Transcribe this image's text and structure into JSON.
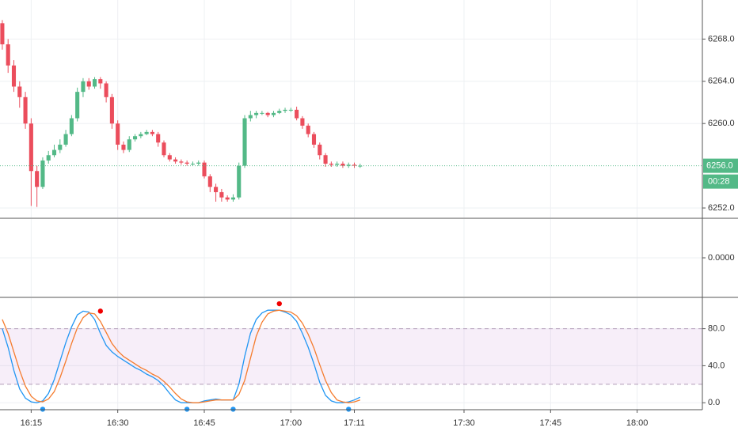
{
  "chart_data": [
    {
      "type": "candlestick",
      "x": [
        970,
        971,
        972,
        973,
        974,
        975,
        976,
        977,
        978,
        979,
        980,
        981,
        982,
        983,
        984,
        985,
        986,
        987,
        988,
        989,
        990,
        991,
        992,
        993,
        994,
        995,
        996,
        997,
        998,
        999,
        1000,
        1001,
        1002,
        1003,
        1004,
        1005,
        1006,
        1007,
        1008,
        1009,
        1010,
        1011,
        1012,
        1013,
        1014,
        1015,
        1016,
        1017,
        1018,
        1019,
        1020,
        1021,
        1022,
        1023,
        1024,
        1025,
        1026,
        1027,
        1028,
        1029,
        1030,
        1031,
        1032
      ],
      "open": [
        6269.5,
        6267.5,
        6265.5,
        6263.5,
        6262.5,
        6260,
        6255.5,
        6254,
        6256.5,
        6257,
        6257.5,
        6258,
        6259,
        6260.5,
        6263,
        6264,
        6263.5,
        6264.2,
        6263.8,
        6262.5,
        6260,
        6258,
        6257.5,
        6258.5,
        6258.8,
        6259,
        6259.2,
        6259,
        6258.2,
        6257,
        6256.6,
        6256.4,
        6256.3,
        6256.2,
        6256.2,
        6256.3,
        6255,
        6254,
        6253.5,
        6253,
        6252.8,
        6253,
        6256,
        6260.5,
        6260.8,
        6261,
        6261,
        6260.8,
        6261,
        6261.2,
        6261.3,
        6261.3,
        6260.5,
        6259.8,
        6259,
        6258,
        6257,
        6256.2,
        6256.1,
        6256.2,
        6256,
        6256.1,
        6256
      ],
      "high": [
        6269.8,
        6268,
        6266,
        6264,
        6263,
        6260.5,
        6256,
        6256.8,
        6257.4,
        6258,
        6258.5,
        6259.4,
        6260.8,
        6263.4,
        6264.3,
        6264.3,
        6264.4,
        6264.4,
        6264,
        6262.8,
        6260.3,
        6258.3,
        6258.8,
        6259,
        6259.2,
        6259.4,
        6259.4,
        6259.2,
        6258.4,
        6257.2,
        6256.8,
        6256.6,
        6256.5,
        6256.4,
        6256.5,
        6256.5,
        6255.2,
        6254.3,
        6253.8,
        6253.2,
        6253.3,
        6256.3,
        6260.8,
        6261.2,
        6261.2,
        6261.2,
        6261.1,
        6261.2,
        6261.4,
        6261.5,
        6261.5,
        6261.6,
        6260.7,
        6260,
        6259.2,
        6258.2,
        6257.2,
        6256.4,
        6256.4,
        6256.4,
        6256.3,
        6256.3,
        6256.2
      ],
      "low": [
        6267,
        6264.8,
        6263,
        6261.5,
        6259.5,
        6252.2,
        6252.1,
        6253.8,
        6256.2,
        6256.8,
        6257.2,
        6257.8,
        6258.8,
        6260.2,
        6262.5,
        6263.2,
        6263.3,
        6263.3,
        6262,
        6259.5,
        6257.5,
        6257.2,
        6257.3,
        6258.3,
        6258.6,
        6258.9,
        6258.8,
        6257.8,
        6256.8,
        6256.4,
        6256.2,
        6256.1,
        6256,
        6256,
        6256,
        6254.8,
        6253.5,
        6252.6,
        6252.6,
        6252.6,
        6252.6,
        6252.8,
        6255.8,
        6260.2,
        6260.5,
        6260.8,
        6260.6,
        6260.6,
        6260.9,
        6261,
        6261.1,
        6260.3,
        6259.5,
        6258.7,
        6257.7,
        6256.6,
        6255.9,
        6255.9,
        6255.9,
        6255.8,
        6255.8,
        6255.8,
        6255.8
      ],
      "close": [
        6267.5,
        6265.5,
        6263.5,
        6262.5,
        6260,
        6255.5,
        6254,
        6256.5,
        6257,
        6257.5,
        6258,
        6259,
        6260.5,
        6263,
        6264,
        6263.5,
        6264.2,
        6263.8,
        6262.5,
        6260,
        6258,
        6257.5,
        6258.5,
        6258.8,
        6259,
        6259.2,
        6259,
        6258.2,
        6257,
        6256.6,
        6256.4,
        6256.3,
        6256.2,
        6256.2,
        6256.3,
        6255,
        6254,
        6253.5,
        6253,
        6252.8,
        6253,
        6256,
        6260.5,
        6260.8,
        6261,
        6261,
        6260.8,
        6261,
        6261.2,
        6261.3,
        6261.3,
        6260.5,
        6259.8,
        6259,
        6258,
        6257,
        6256.2,
        6256.1,
        6256.2,
        6256,
        6256.1,
        6256,
        6256
      ],
      "up_color": "#53b987",
      "down_color": "#eb4d5c",
      "xlim": [
        969.6,
        1091.3
      ],
      "ylim": [
        6251.1,
        6271.7
      ],
      "yticks": [
        {
          "value": 6252,
          "label": "6252.0"
        },
        {
          "value": 6260,
          "label": "6260.0"
        },
        {
          "value": 6264,
          "label": "6264.0"
        },
        {
          "value": 6268,
          "label": "6268.0"
        }
      ],
      "last_price": {
        "value": 6256,
        "label": "6256.0"
      },
      "countdown": "00:28",
      "grid": true
    },
    {
      "type": "empty",
      "ylim": [
        -1,
        1
      ],
      "yticks": [
        {
          "value": 0,
          "label": "0.0000"
        }
      ],
      "grid": true
    },
    {
      "type": "line",
      "x": [
        970,
        971,
        972,
        973,
        974,
        975,
        976,
        977,
        978,
        979,
        980,
        981,
        982,
        983,
        984,
        985,
        986,
        987,
        988,
        989,
        990,
        991,
        992,
        993,
        994,
        995,
        996,
        997,
        998,
        999,
        1000,
        1001,
        1002,
        1003,
        1004,
        1005,
        1006,
        1007,
        1008,
        1009,
        1010,
        1011,
        1012,
        1013,
        1014,
        1015,
        1016,
        1017,
        1018,
        1019,
        1020,
        1021,
        1022,
        1023,
        1024,
        1025,
        1026,
        1027,
        1028,
        1029,
        1030,
        1031,
        1032
      ],
      "series": [
        {
          "color": "#2196f3",
          "values": [
            80,
            60,
            35,
            15,
            5,
            1,
            0,
            2,
            10,
            25,
            45,
            65,
            82,
            95,
            99,
            98,
            90,
            75,
            62,
            55,
            50,
            46,
            42,
            38,
            35,
            31,
            28,
            24,
            18,
            10,
            3,
            0,
            0,
            0,
            0,
            2,
            3,
            4,
            3,
            3,
            3,
            20,
            50,
            75,
            90,
            97,
            100,
            100,
            100,
            98,
            95,
            88,
            75,
            60,
            42,
            22,
            8,
            2,
            0,
            0,
            1,
            3,
            6
          ]
        },
        {
          "color": "#f57c2e",
          "values": [
            90,
            75,
            55,
            35,
            18,
            7,
            2,
            1,
            4,
            12,
            27,
            45,
            64,
            81,
            92,
            97,
            96,
            88,
            76,
            64,
            56,
            50,
            46,
            42,
            38,
            35,
            31,
            28,
            23,
            17,
            10,
            4,
            1,
            0,
            0,
            1,
            2,
            3,
            3,
            3,
            3,
            9,
            24,
            48,
            72,
            87,
            96,
            99,
            100,
            99,
            98,
            94,
            86,
            74,
            59,
            41,
            24,
            11,
            3,
            1,
            0,
            1,
            3
          ]
        }
      ],
      "markers": [
        {
          "x": 977,
          "value": -7,
          "color": "#2196f3"
        },
        {
          "x": 987,
          "value": 99,
          "color": "#f00000"
        },
        {
          "x": 1002,
          "value": -7,
          "color": "#2196f3"
        },
        {
          "x": 1010,
          "value": -7,
          "color": "#2196f3"
        },
        {
          "x": 1018,
          "value": 107,
          "color": "#f00000"
        },
        {
          "x": 1030,
          "value": -7,
          "color": "#2196f3"
        }
      ],
      "bands": [
        20,
        80
      ],
      "band_color": "#9c27b0",
      "xlim": [
        969.6,
        1091.3
      ],
      "ylim": [
        -7.5,
        113
      ],
      "yticks": [
        {
          "value": 0,
          "label": "0.0"
        },
        {
          "value": 40,
          "label": "40.0"
        },
        {
          "value": 80,
          "label": "80.0"
        }
      ],
      "xticks": [
        {
          "value": 975,
          "label": "16:15"
        },
        {
          "value": 990,
          "label": "16:30"
        },
        {
          "value": 1005,
          "label": "16:45"
        },
        {
          "value": 1020,
          "label": "17:00"
        },
        {
          "value": 1031,
          "label": "17:11"
        },
        {
          "value": 1050,
          "label": "17:30"
        },
        {
          "value": 1065,
          "label": "17:45"
        },
        {
          "value": 1080,
          "label": "18:00"
        }
      ],
      "grid": true
    }
  ]
}
